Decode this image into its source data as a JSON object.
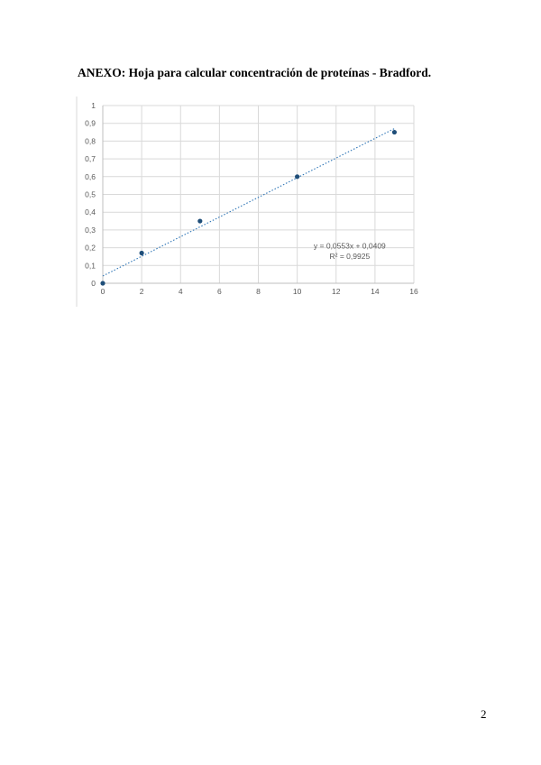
{
  "document": {
    "heading": "ANEXO: Hoja para calcular concentración de proteínas - Bradford.",
    "page_number": "2"
  },
  "chart_data": {
    "type": "scatter",
    "title": "",
    "xlabel": "",
    "ylabel": "",
    "xlim": [
      0,
      16
    ],
    "ylim": [
      0,
      1
    ],
    "x_ticks": [
      "0",
      "2",
      "4",
      "6",
      "8",
      "10",
      "12",
      "14",
      "16"
    ],
    "y_ticks": [
      "0",
      "0,1",
      "0,2",
      "0,3",
      "0,4",
      "0,5",
      "0,6",
      "0,7",
      "0,8",
      "0,9",
      "1"
    ],
    "grid": true,
    "legend": "none",
    "series": [
      {
        "x": [
          0,
          2,
          5,
          10,
          15
        ],
        "y": [
          0.0,
          0.17,
          0.35,
          0.6,
          0.85
        ],
        "color": "#1f4e79"
      }
    ],
    "trendline": {
      "type": "linear",
      "slope": 0.0553,
      "intercept": 0.0409,
      "color": "#2e75b6",
      "equation_label": "y = 0,0553x + 0,0409",
      "r2_label": "R² = 0,9925"
    }
  }
}
